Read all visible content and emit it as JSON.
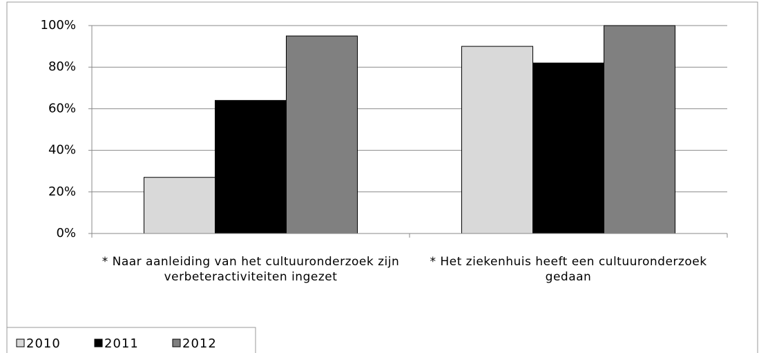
{
  "chart_data": {
    "type": "bar",
    "categories": [
      "* Naar aanleiding van het cultuuronderzoek zijn verbeteractiviteiten ingezet",
      "* Het ziekenhuis heeft een cultuuronderzoek gedaan"
    ],
    "series": [
      {
        "name": "2010",
        "color": "#d9d9d9",
        "values": [
          27,
          90
        ]
      },
      {
        "name": "2011",
        "color": "#000000",
        "values": [
          64,
          82
        ]
      },
      {
        "name": "2012",
        "color": "#808080",
        "values": [
          95,
          100
        ]
      }
    ],
    "ylim": [
      0,
      100
    ],
    "yticks": [
      {
        "value": 0,
        "label": "0%"
      },
      {
        "value": 20,
        "label": "20%"
      },
      {
        "value": 40,
        "label": "40%"
      },
      {
        "value": 60,
        "label": "60%"
      },
      {
        "value": 80,
        "label": "80%"
      },
      {
        "value": 100,
        "label": "100%"
      }
    ],
    "grid": true,
    "legend": "bottom-left"
  }
}
